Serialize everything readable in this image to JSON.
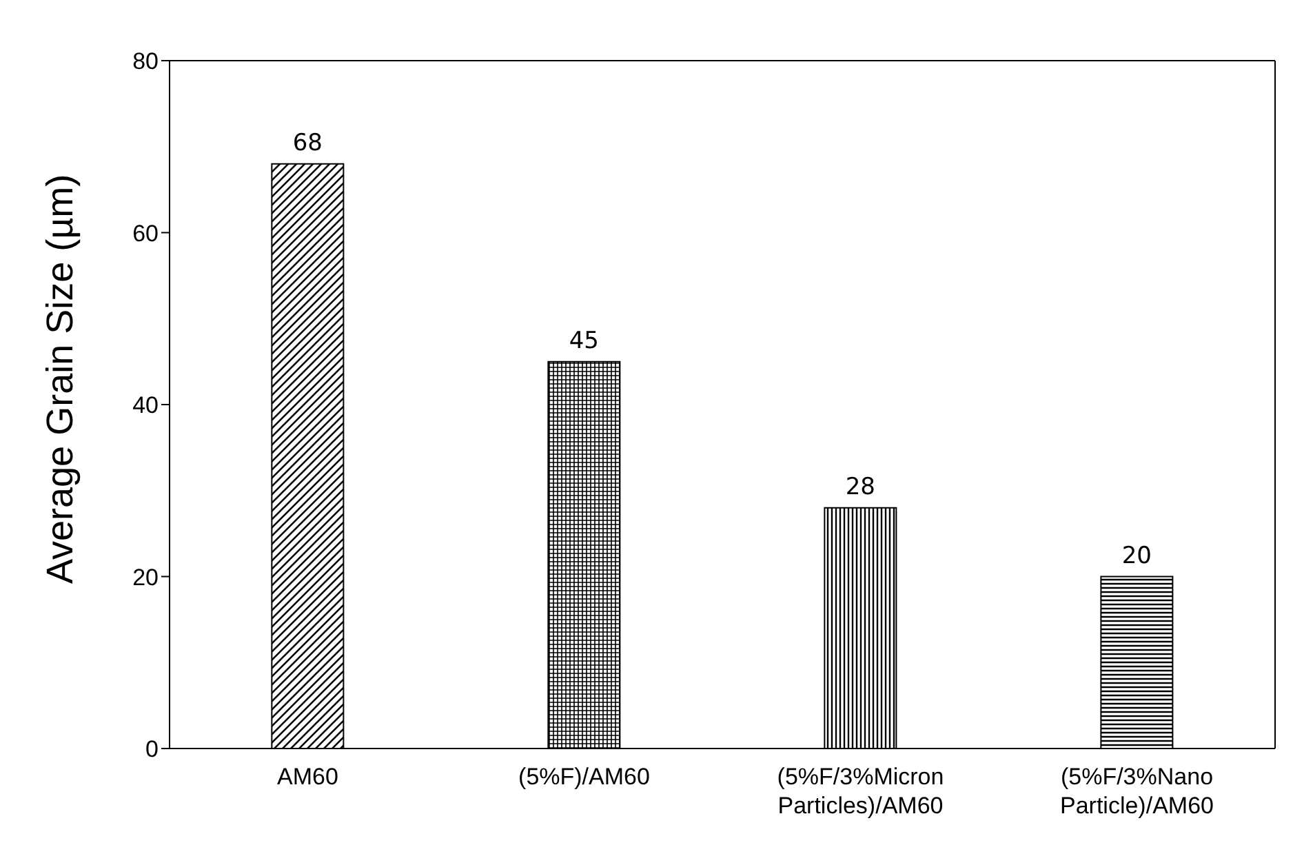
{
  "chart_data": {
    "type": "bar",
    "ylabel": "Average Grain Size (µm)",
    "categories": [
      "AM60",
      "(5%F)/AM60",
      "(5%F/3%Micron Particles)/AM60",
      "(5%F/3%Nano Particle)/AM60"
    ],
    "values": [
      68,
      45,
      28,
      20
    ],
    "colors": [
      "#000000",
      "#000000",
      "#000000",
      "#000000"
    ],
    "ylim": [
      0,
      80
    ],
    "yticks": [
      0,
      20,
      40,
      60,
      80
    ],
    "data_labels": true,
    "grid": false,
    "legend": false
  }
}
